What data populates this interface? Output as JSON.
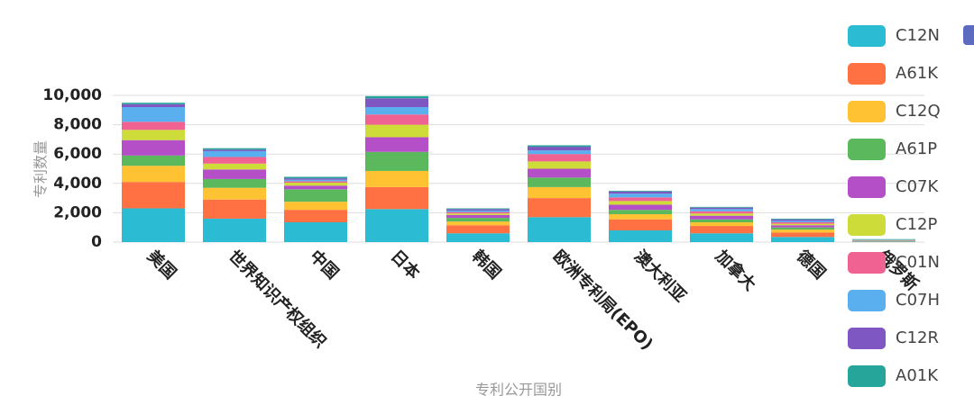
{
  "chart_data": {
    "type": "stacked_bar",
    "x_label": "专利公开国别",
    "y_label": "专利数量",
    "categories": [
      "美国",
      "世界知识产权组织",
      "中国",
      "日本",
      "韩国",
      "欧洲专利局(EPO)",
      "澳大利亚",
      "加拿大",
      "德国",
      "俄罗斯"
    ],
    "ylim": [
      0,
      10000
    ],
    "yticks": [
      0,
      {
        "value": 2000,
        "label": "2,000"
      },
      {
        "value": 4000,
        "label": "4,000"
      },
      {
        "value": 6000,
        "label": "6,000"
      },
      {
        "value": 8000,
        "label": "8,000"
      },
      {
        "value": 10000,
        "label": "10,000"
      }
    ],
    "grid": true,
    "series": [
      {
        "name": "C12N",
        "color": "#2bbcd4",
        "values": [
          2300,
          1600,
          1350,
          2250,
          600,
          1700,
          800,
          600,
          350,
          40
        ]
      },
      {
        "name": "A61K",
        "color": "#ff7043",
        "values": [
          1800,
          1300,
          850,
          1500,
          550,
          1300,
          750,
          500,
          300,
          20
        ]
      },
      {
        "name": "C12Q",
        "color": "#ffc233",
        "values": [
          1100,
          800,
          550,
          1100,
          250,
          750,
          350,
          250,
          200,
          20
        ]
      },
      {
        "name": "A61P",
        "color": "#5cb85c",
        "values": [
          700,
          600,
          850,
          1300,
          250,
          650,
          300,
          200,
          150,
          20
        ]
      },
      {
        "name": "C07K",
        "color": "#b44fc8",
        "values": [
          1050,
          650,
          250,
          1000,
          200,
          600,
          350,
          250,
          150,
          20
        ]
      },
      {
        "name": "C12P",
        "color": "#cddc39",
        "values": [
          700,
          400,
          200,
          850,
          100,
          500,
          250,
          150,
          100,
          10
        ]
      },
      {
        "name": "C01N",
        "color": "#f06292",
        "values": [
          550,
          450,
          100,
          700,
          100,
          500,
          250,
          150,
          100,
          10
        ]
      },
      {
        "name": "C07H",
        "color": "#5aafef",
        "values": [
          1000,
          400,
          100,
          500,
          100,
          250,
          250,
          150,
          100,
          10
        ]
      },
      {
        "name": "C12R",
        "color": "#7e57c2",
        "values": [
          200,
          100,
          100,
          600,
          100,
          250,
          150,
          100,
          100,
          10
        ]
      },
      {
        "name": "A01K",
        "color": "#26a69a",
        "values": [
          100,
          100,
          100,
          150,
          50,
          100,
          50,
          50,
          50,
          40
        ]
      }
    ]
  }
}
